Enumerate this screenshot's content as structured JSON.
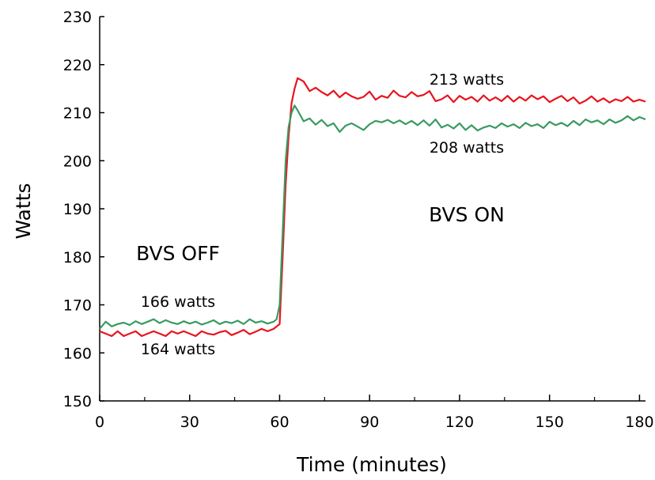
{
  "chart_data": {
    "type": "line",
    "title": "",
    "xlabel": "Time (minutes)",
    "ylabel": "Watts",
    "xlim": [
      0,
      182
    ],
    "ylim": [
      150,
      230
    ],
    "xticks": [
      0,
      30,
      60,
      90,
      120,
      150,
      180
    ],
    "yticks": [
      150,
      160,
      170,
      180,
      190,
      200,
      210,
      220,
      230
    ],
    "xtick_labels": [
      "0",
      "30",
      "60",
      "90",
      "120",
      "150",
      "180"
    ],
    "ytick_labels": [
      "150",
      "160",
      "170",
      "180",
      "190",
      "200",
      "210",
      "220",
      "230"
    ],
    "grid": false,
    "legend": "none",
    "series": [
      {
        "color": "#e8141e",
        "x": [
          0,
          2,
          4,
          6,
          8,
          10,
          12,
          14,
          16,
          18,
          20,
          22,
          24,
          26,
          28,
          30,
          32,
          34,
          36,
          38,
          40,
          42,
          44,
          46,
          48,
          50,
          52,
          54,
          56,
          58,
          60,
          61,
          62,
          63,
          64,
          65,
          66,
          68,
          70,
          72,
          74,
          76,
          78,
          80,
          82,
          84,
          86,
          88,
          90,
          92,
          94,
          96,
          98,
          100,
          102,
          104,
          106,
          108,
          110,
          112,
          114,
          116,
          118,
          120,
          122,
          124,
          126,
          128,
          130,
          132,
          134,
          136,
          138,
          140,
          142,
          144,
          146,
          148,
          150,
          152,
          154,
          156,
          158,
          160,
          162,
          164,
          166,
          168,
          170,
          172,
          174,
          176,
          178,
          180,
          182
        ],
        "y": [
          164.5,
          164,
          163.5,
          164.5,
          163.5,
          164,
          164.5,
          163.5,
          164,
          164.5,
          164,
          163.5,
          164.5,
          164,
          164.5,
          164,
          163.5,
          164.5,
          164,
          163.8,
          164.3,
          164.6,
          163.7,
          164.2,
          164.8,
          163.9,
          164.4,
          165,
          164.5,
          165,
          166,
          180,
          195,
          205,
          212,
          215,
          217.2,
          216.5,
          214.5,
          215.2,
          214.3,
          213.6,
          214.6,
          213.2,
          214.2,
          213.4,
          212.9,
          213.3,
          214.4,
          212.7,
          213.5,
          213.1,
          214.6,
          213.5,
          213.2,
          214.3,
          213.4,
          213.7,
          214.5,
          212.4,
          212.8,
          213.6,
          212.2,
          213.5,
          212.7,
          213.3,
          212.3,
          213.6,
          212.5,
          213.2,
          212.4,
          213.5,
          212.3,
          213.3,
          212.5,
          213.6,
          212.8,
          213.4,
          212.2,
          212.9,
          213.5,
          212.4,
          213.2,
          211.9,
          212.5,
          213.4,
          212.3,
          213,
          212.1,
          212.8,
          212.4,
          213.3,
          212.3,
          212.7,
          212.3
        ]
      },
      {
        "color": "#3a9a62",
        "x": [
          0,
          2,
          4,
          6,
          8,
          10,
          12,
          14,
          16,
          18,
          20,
          22,
          24,
          26,
          28,
          30,
          32,
          34,
          36,
          38,
          40,
          42,
          44,
          46,
          48,
          50,
          52,
          54,
          56,
          58,
          59,
          60,
          61,
          62,
          63,
          64,
          65,
          66,
          68,
          70,
          72,
          74,
          76,
          78,
          80,
          82,
          84,
          86,
          88,
          90,
          92,
          94,
          96,
          98,
          100,
          102,
          104,
          106,
          108,
          110,
          112,
          114,
          116,
          118,
          120,
          122,
          124,
          126,
          128,
          130,
          132,
          134,
          136,
          138,
          140,
          142,
          144,
          146,
          148,
          150,
          152,
          154,
          156,
          158,
          160,
          162,
          164,
          166,
          168,
          170,
          172,
          174,
          176,
          178,
          180,
          182
        ],
        "y": [
          165,
          166.5,
          165.5,
          166,
          166.3,
          165.8,
          166.6,
          166,
          166.5,
          167,
          166.2,
          166.8,
          166.3,
          166,
          166.6,
          166.1,
          166.5,
          165.9,
          166.3,
          166.8,
          166,
          166.5,
          166.2,
          166.7,
          166,
          167,
          166.3,
          166.6,
          166.1,
          166.5,
          167,
          170,
          185,
          200,
          207,
          210,
          211.5,
          210.5,
          208.2,
          208.8,
          207.5,
          208.5,
          207.2,
          207.8,
          206,
          207.3,
          207.8,
          207.1,
          206.4,
          207.6,
          208.3,
          208,
          208.5,
          207.8,
          208.4,
          207.6,
          208.3,
          207.4,
          208.4,
          207.3,
          208.6,
          206.9,
          207.5,
          206.7,
          207.8,
          206.4,
          207.4,
          206.3,
          206.9,
          207.3,
          206.8,
          207.8,
          207.1,
          207.6,
          206.8,
          207.9,
          207.2,
          207.6,
          206.8,
          208.1,
          207.4,
          207.9,
          207.2,
          208.3,
          207.4,
          208.6,
          208,
          208.4,
          207.6,
          208.6,
          207.9,
          208.4,
          209.3,
          208.4,
          209.1,
          208.6
        ]
      }
    ],
    "annotations": {
      "red_on": "213 watts",
      "green_on": "208 watts",
      "bvs_on": "BVS ON",
      "bvs_off": "BVS OFF",
      "green_off": "166 watts",
      "red_off": "164 watts"
    }
  }
}
